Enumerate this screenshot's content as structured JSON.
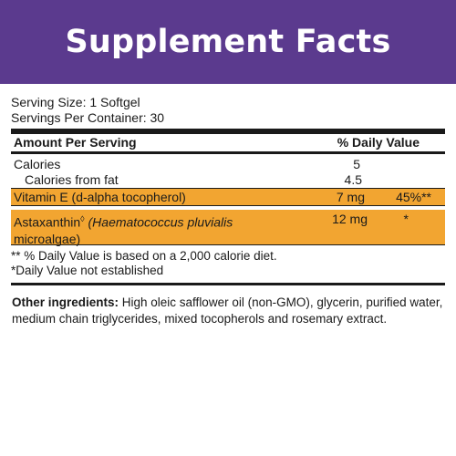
{
  "header": {
    "title": "Supplement Facts"
  },
  "serving": {
    "size": "Serving Size: 1 Softgel",
    "per_container": "Servings Per Container: 30"
  },
  "table": {
    "col_amount": "Amount Per Serving",
    "col_dv": "% Daily Value",
    "rows": [
      {
        "name": "Calories",
        "amount": "5",
        "dv": ""
      },
      {
        "name": "Calories from fat",
        "amount": "4.5",
        "dv": ""
      },
      {
        "name": "Vitamin E (d-alpha tocopherol)",
        "amount": "7 mg",
        "dv": "45%**"
      }
    ],
    "astax": {
      "name_prefix": "Astaxanthin",
      "name_mark": "◊",
      "name_italic": "(Haematococcus pluvialis",
      "name_line2": "microalgae)",
      "amount": "12 mg",
      "dv": "*"
    }
  },
  "notes": {
    "note1": "** % Daily Value is based on a 2,000 calorie diet.",
    "note2": "*Daily Value not established"
  },
  "other": {
    "label": "Other ingredients:",
    "text": " High oleic safflower oil (non-GMO), glycerin, purified water, medium chain triglycerides, mixed tocopherols and rosemary extract."
  },
  "colors": {
    "header_bg": "#5b3a8e",
    "highlight": "#f2a531"
  }
}
